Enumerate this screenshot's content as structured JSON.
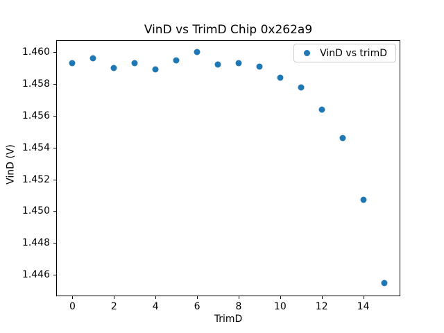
{
  "chart_data": {
    "type": "scatter",
    "title": "VinD vs TrimD Chip 0x262a9",
    "xlabel": "TrimD",
    "ylabel": "VinD (V)",
    "legend": [
      "VinD vs trimD"
    ],
    "legend_position": "upper right",
    "marker_color": "#1f77b4",
    "grid": false,
    "x": [
      0,
      1,
      2,
      3,
      4,
      5,
      6,
      7,
      8,
      9,
      10,
      11,
      12,
      13,
      14,
      15
    ],
    "y": [
      1.4593,
      1.4596,
      1.459,
      1.4593,
      1.4589,
      1.4595,
      1.46,
      1.4592,
      1.4593,
      1.4591,
      1.4584,
      1.4578,
      1.4564,
      1.4546,
      1.4507,
      1.4455
    ],
    "xlim": [
      -0.75,
      15.75
    ],
    "ylim": [
      1.4447,
      1.4607
    ],
    "xticks": [
      0,
      2,
      4,
      6,
      8,
      10,
      12,
      14
    ],
    "xtick_labels": [
      "0",
      "2",
      "4",
      "6",
      "8",
      "10",
      "12",
      "14"
    ],
    "yticks": [
      1.446,
      1.448,
      1.45,
      1.452,
      1.454,
      1.456,
      1.458,
      1.46
    ],
    "ytick_labels": [
      "1.446",
      "1.448",
      "1.450",
      "1.452",
      "1.454",
      "1.456",
      "1.458",
      "1.460"
    ]
  }
}
